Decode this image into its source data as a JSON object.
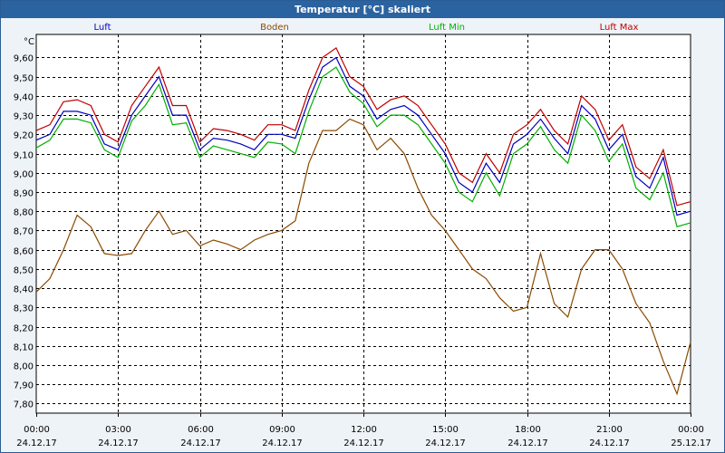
{
  "window": {
    "title": "Temperatur [°C] skaliert"
  },
  "colors": {
    "titlebar": "#2b63a0",
    "luft": "#0000c0",
    "boden": "#8b4a00",
    "luft_min": "#00b000",
    "luft_max": "#c00000"
  },
  "chart_data": {
    "type": "line",
    "title": "Temperatur [°C] skaliert",
    "ylabel": "°C",
    "xlabel": "",
    "ylim": [
      7.75,
      9.72
    ],
    "xlim": [
      "24.12.17 00:00",
      "25.12.17 00:00"
    ],
    "grid": true,
    "legend_position": "top",
    "yticks": [
      "9,60",
      "9,50",
      "9,40",
      "9,30",
      "9,20",
      "9,10",
      "9,00",
      "8,90",
      "8,80",
      "8,70",
      "8,60",
      "8,50",
      "8,40",
      "8,30",
      "8,20",
      "8,10",
      "8,00",
      "7,90",
      "7,80"
    ],
    "ytick_values": [
      9.6,
      9.5,
      9.4,
      9.3,
      9.2,
      9.1,
      9.0,
      8.9,
      8.8,
      8.7,
      8.6,
      8.5,
      8.4,
      8.3,
      8.2,
      8.1,
      8.0,
      7.9,
      7.8
    ],
    "xticks": [
      {
        "time": "00:00",
        "date": "24.12.17"
      },
      {
        "time": "03:00",
        "date": "24.12.17"
      },
      {
        "time": "06:00",
        "date": "24.12.17"
      },
      {
        "time": "09:00",
        "date": "24.12.17"
      },
      {
        "time": "12:00",
        "date": "24.12.17"
      },
      {
        "time": "15:00",
        "date": "24.12.17"
      },
      {
        "time": "18:00",
        "date": "24.12.17"
      },
      {
        "time": "21:00",
        "date": "24.12.17"
      },
      {
        "time": "00:00",
        "date": "25.12.17"
      }
    ],
    "x_hours": [
      0,
      0.5,
      1,
      1.5,
      2,
      2.5,
      3,
      3.5,
      4,
      4.5,
      5,
      5.5,
      6,
      6.5,
      7,
      7.5,
      8,
      8.5,
      9,
      9.5,
      10,
      10.5,
      11,
      11.5,
      12,
      12.5,
      13,
      13.5,
      14,
      14.5,
      15,
      15.5,
      16,
      16.5,
      17,
      17.5,
      18,
      18.5,
      19,
      19.5,
      20,
      20.5,
      21,
      21.5,
      22,
      22.5,
      23,
      23.5,
      24
    ],
    "series": [
      {
        "name": "Luft",
        "color": "#0000c0",
        "values": [
          9.17,
          9.2,
          9.32,
          9.32,
          9.3,
          9.15,
          9.12,
          9.3,
          9.4,
          9.5,
          9.3,
          9.3,
          9.12,
          9.18,
          9.17,
          9.15,
          9.12,
          9.2,
          9.2,
          9.18,
          9.38,
          9.55,
          9.6,
          9.45,
          9.4,
          9.28,
          9.33,
          9.35,
          9.3,
          9.2,
          9.1,
          8.95,
          8.9,
          9.05,
          8.95,
          9.15,
          9.2,
          9.28,
          9.18,
          9.1,
          9.35,
          9.28,
          9.12,
          9.2,
          8.98,
          8.92,
          9.08,
          8.78,
          8.8
        ]
      },
      {
        "name": "Boden",
        "color": "#8b4a00",
        "values": [
          8.38,
          8.45,
          8.6,
          8.78,
          8.72,
          8.58,
          8.57,
          8.58,
          8.7,
          8.8,
          8.68,
          8.7,
          8.62,
          8.65,
          8.63,
          8.6,
          8.65,
          8.68,
          8.7,
          8.75,
          9.05,
          9.22,
          9.22,
          9.28,
          9.25,
          9.12,
          9.18,
          9.1,
          8.92,
          8.78,
          8.7,
          8.6,
          8.5,
          8.45,
          8.35,
          8.28,
          8.3,
          8.58,
          8.32,
          8.25,
          8.5,
          8.6,
          8.6,
          8.5,
          8.32,
          8.22,
          8.02,
          7.85,
          8.12
        ]
      },
      {
        "name": "Luft Min",
        "color": "#00b000",
        "values": [
          9.13,
          9.17,
          9.28,
          9.28,
          9.26,
          9.12,
          9.08,
          9.27,
          9.35,
          9.46,
          9.25,
          9.26,
          9.08,
          9.14,
          9.12,
          9.1,
          9.08,
          9.16,
          9.15,
          9.1,
          9.32,
          9.5,
          9.55,
          9.42,
          9.36,
          9.24,
          9.3,
          9.3,
          9.25,
          9.15,
          9.05,
          8.9,
          8.85,
          9.0,
          8.88,
          9.1,
          9.15,
          9.24,
          9.12,
          9.05,
          9.3,
          9.22,
          9.06,
          9.15,
          8.92,
          8.86,
          9.0,
          8.72,
          8.74
        ]
      },
      {
        "name": "Luft Max",
        "color": "#c00000",
        "values": [
          9.22,
          9.25,
          9.37,
          9.38,
          9.35,
          9.2,
          9.16,
          9.35,
          9.45,
          9.55,
          9.35,
          9.35,
          9.16,
          9.23,
          9.22,
          9.2,
          9.17,
          9.25,
          9.25,
          9.22,
          9.43,
          9.6,
          9.65,
          9.5,
          9.45,
          9.33,
          9.38,
          9.4,
          9.35,
          9.25,
          9.15,
          9.0,
          8.95,
          9.1,
          9.0,
          9.2,
          9.25,
          9.33,
          9.22,
          9.15,
          9.4,
          9.33,
          9.17,
          9.25,
          9.03,
          8.97,
          9.12,
          8.83,
          8.85
        ]
      }
    ]
  }
}
